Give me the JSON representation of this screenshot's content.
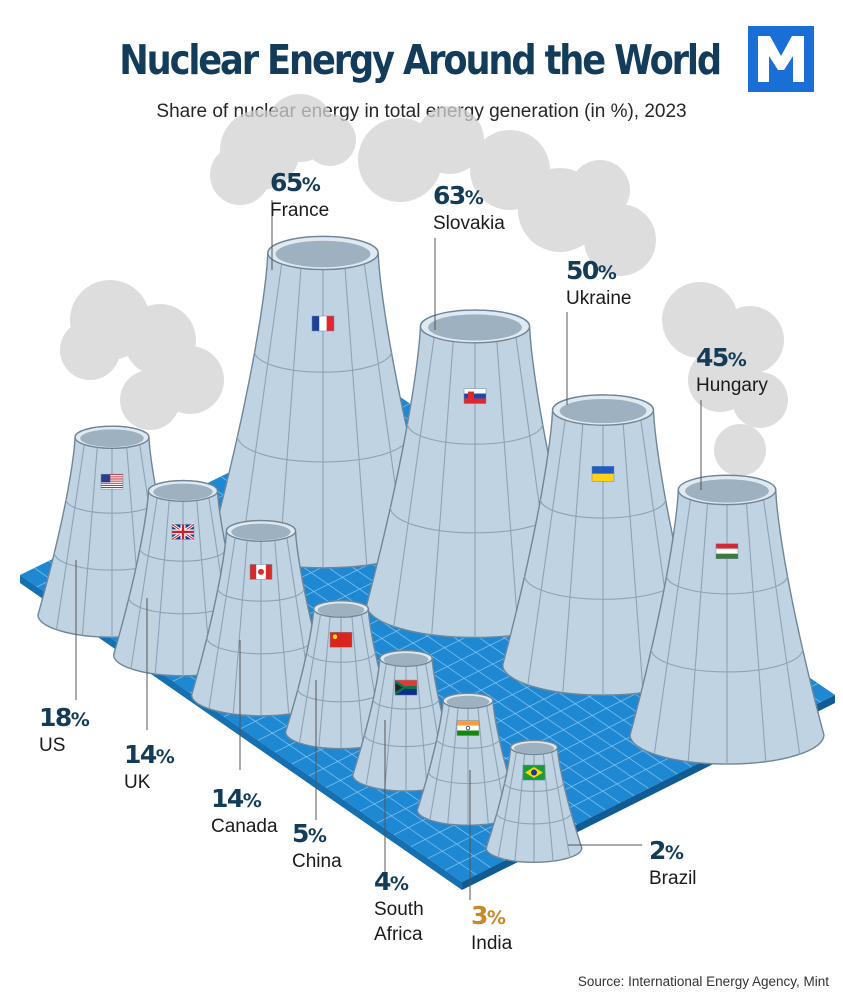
{
  "title": "Nuclear Energy Around the World",
  "subtitle": "Share of nuclear energy in total energy generation (in %), 2023",
  "logo_letter": "M",
  "source": "Source: International Energy Agency, Mint",
  "colors": {
    "title": "#123c5a",
    "logo": "#1a6fd6",
    "platform": "#1e88d2",
    "tower": "#bfd3e3",
    "highlight": "#c8892a"
  },
  "chart_data": {
    "type": "bar",
    "title": "Nuclear Energy Around the World",
    "subtitle": "Share of nuclear energy in total energy generation (in %), 2023",
    "unit": "%",
    "categories": [
      "France",
      "Slovakia",
      "Ukraine",
      "Hungary",
      "US",
      "UK",
      "Canada",
      "China",
      "South Africa",
      "India",
      "Brazil"
    ],
    "values": [
      65,
      63,
      50,
      45,
      18,
      14,
      14,
      5,
      4,
      3,
      2
    ],
    "series": [
      {
        "values": [
          65,
          63,
          50,
          45,
          18,
          14,
          14,
          5,
          4,
          3,
          2
        ]
      }
    ],
    "labels": [
      {
        "value": "65",
        "name": "France"
      },
      {
        "value": "63",
        "name": "Slovakia"
      },
      {
        "value": "50",
        "name": "Ukraine"
      },
      {
        "value": "45",
        "name": "Hungary"
      },
      {
        "value": "18",
        "name": "US"
      },
      {
        "value": "14",
        "name": "UK"
      },
      {
        "value": "14",
        "name": "Canada"
      },
      {
        "value": "5",
        "name": "China"
      },
      {
        "value": "4",
        "name": "South Africa"
      },
      {
        "value": "3",
        "name": "India"
      },
      {
        "value": "2",
        "name": "Brazil"
      }
    ],
    "flags": [
      "france-flag",
      "slovakia-flag",
      "ukraine-flag",
      "hungary-flag",
      "us-flag",
      "uk-flag",
      "canada-flag",
      "china-flag",
      "south-africa-flag",
      "india-flag",
      "brazil-flag"
    ],
    "highlighted": "India",
    "marks": "cooling-towers"
  }
}
